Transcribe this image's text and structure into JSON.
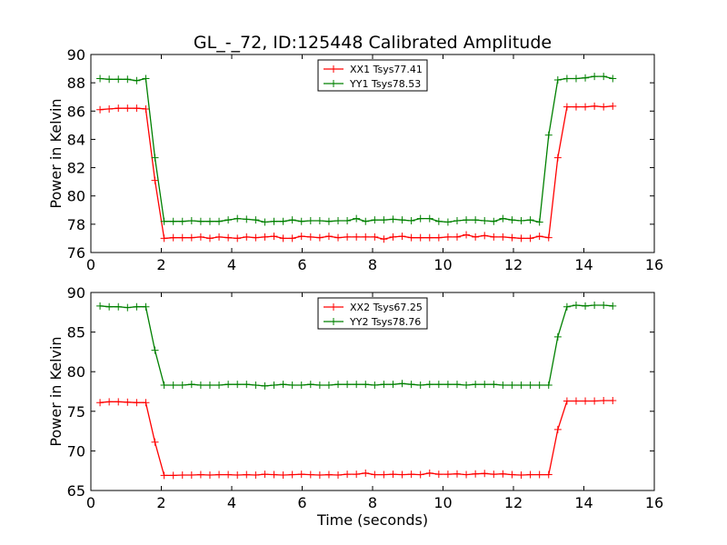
{
  "title": "GL_-_72, ID:125448 Calibrated Amplitude",
  "chart_data": [
    {
      "type": "line",
      "title": "GL_-_72, ID:125448 Calibrated Amplitude",
      "xlabel": "",
      "ylabel": "Power in Kelvin",
      "xlim": [
        0,
        16
      ],
      "ylim": [
        76,
        90
      ],
      "xticks": [
        0,
        2,
        4,
        6,
        8,
        10,
        12,
        14,
        16
      ],
      "yticks": [
        76,
        78,
        80,
        82,
        84,
        86,
        88,
        90
      ],
      "grid": false,
      "legend": "upper center",
      "x": [
        0.26,
        0.52,
        0.78,
        1.04,
        1.3,
        1.56,
        1.82,
        2.08,
        2.34,
        2.6,
        2.86,
        3.12,
        3.38,
        3.64,
        3.9,
        4.16,
        4.42,
        4.68,
        4.94,
        5.2,
        5.46,
        5.72,
        5.98,
        6.24,
        6.5,
        6.76,
        7.02,
        7.28,
        7.54,
        7.8,
        8.06,
        8.32,
        8.58,
        8.84,
        9.1,
        9.36,
        9.62,
        9.88,
        10.14,
        10.4,
        10.66,
        10.92,
        11.18,
        11.44,
        11.7,
        11.96,
        12.22,
        12.48,
        12.74,
        13.0,
        13.26,
        13.52,
        13.78,
        14.04,
        14.3,
        14.56,
        14.82
      ],
      "series": [
        {
          "name": "XX1 Tsys77.41",
          "color": "#ff0000",
          "values": [
            86.1,
            86.15,
            86.2,
            86.2,
            86.2,
            86.15,
            81.1,
            77.0,
            77.05,
            77.05,
            77.05,
            77.1,
            77.0,
            77.1,
            77.05,
            77.0,
            77.1,
            77.05,
            77.1,
            77.15,
            77.0,
            77.0,
            77.15,
            77.1,
            77.05,
            77.15,
            77.05,
            77.1,
            77.1,
            77.1,
            77.1,
            76.95,
            77.1,
            77.15,
            77.05,
            77.05,
            77.05,
            77.05,
            77.1,
            77.1,
            77.25,
            77.1,
            77.2,
            77.1,
            77.1,
            77.05,
            77.0,
            77.0,
            77.15,
            77.05,
            82.7,
            86.3,
            86.3,
            86.3,
            86.35,
            86.3,
            86.35
          ]
        },
        {
          "name": "YY1 Tsys78.53",
          "color": "#008000",
          "values": [
            88.3,
            88.25,
            88.25,
            88.25,
            88.15,
            88.3,
            82.7,
            78.2,
            78.2,
            78.2,
            78.25,
            78.2,
            78.2,
            78.2,
            78.3,
            78.4,
            78.35,
            78.3,
            78.15,
            78.2,
            78.2,
            78.3,
            78.2,
            78.25,
            78.25,
            78.2,
            78.25,
            78.25,
            78.4,
            78.2,
            78.3,
            78.3,
            78.35,
            78.3,
            78.25,
            78.4,
            78.4,
            78.2,
            78.15,
            78.25,
            78.3,
            78.3,
            78.25,
            78.2,
            78.4,
            78.3,
            78.25,
            78.3,
            78.15,
            84.3,
            88.2,
            88.3,
            88.3,
            88.35,
            88.45,
            88.45,
            88.3
          ]
        }
      ]
    },
    {
      "type": "line",
      "title": "",
      "xlabel": "Time (seconds)",
      "ylabel": "Power in Kelvin",
      "xlim": [
        0,
        16
      ],
      "ylim": [
        65,
        90
      ],
      "xticks": [
        0,
        2,
        4,
        6,
        8,
        10,
        12,
        14,
        16
      ],
      "yticks": [
        65,
        70,
        75,
        80,
        85,
        90
      ],
      "grid": false,
      "legend": "upper center",
      "x": [
        0.26,
        0.52,
        0.78,
        1.04,
        1.3,
        1.56,
        1.82,
        2.08,
        2.34,
        2.6,
        2.86,
        3.12,
        3.38,
        3.64,
        3.9,
        4.16,
        4.42,
        4.68,
        4.94,
        5.2,
        5.46,
        5.72,
        5.98,
        6.24,
        6.5,
        6.76,
        7.02,
        7.28,
        7.54,
        7.8,
        8.06,
        8.32,
        8.58,
        8.84,
        9.1,
        9.36,
        9.62,
        9.88,
        10.14,
        10.4,
        10.66,
        10.92,
        11.18,
        11.44,
        11.7,
        11.96,
        12.22,
        12.48,
        12.74,
        13.0,
        13.26,
        13.52,
        13.78,
        14.04,
        14.3,
        14.56,
        14.82
      ],
      "series": [
        {
          "name": "XX2 Tsys67.25",
          "color": "#ff0000",
          "values": [
            76.1,
            76.2,
            76.2,
            76.15,
            76.1,
            76.1,
            71.1,
            66.9,
            66.9,
            66.95,
            66.95,
            67.0,
            66.95,
            67.0,
            67.0,
            66.95,
            67.0,
            66.95,
            67.05,
            67.0,
            66.95,
            67.0,
            67.05,
            67.0,
            66.95,
            67.0,
            66.95,
            67.05,
            67.05,
            67.2,
            67.0,
            67.0,
            67.05,
            67.0,
            67.05,
            67.0,
            67.2,
            67.05,
            67.05,
            67.1,
            67.0,
            67.1,
            67.15,
            67.05,
            67.1,
            67.0,
            66.95,
            67.0,
            67.0,
            67.0,
            72.7,
            76.3,
            76.3,
            76.3,
            76.3,
            76.35,
            76.35
          ]
        },
        {
          "name": "YY2 Tsys78.76",
          "color": "#008000",
          "values": [
            88.3,
            88.2,
            88.2,
            88.1,
            88.2,
            88.2,
            82.7,
            78.3,
            78.3,
            78.3,
            78.4,
            78.3,
            78.3,
            78.3,
            78.4,
            78.4,
            78.4,
            78.3,
            78.2,
            78.3,
            78.4,
            78.3,
            78.3,
            78.4,
            78.3,
            78.3,
            78.4,
            78.4,
            78.4,
            78.4,
            78.3,
            78.4,
            78.4,
            78.5,
            78.4,
            78.3,
            78.4,
            78.4,
            78.4,
            78.4,
            78.3,
            78.4,
            78.4,
            78.4,
            78.3,
            78.3,
            78.3,
            78.3,
            78.3,
            78.3,
            84.4,
            88.2,
            88.4,
            88.3,
            88.4,
            88.4,
            88.3
          ]
        }
      ]
    }
  ]
}
